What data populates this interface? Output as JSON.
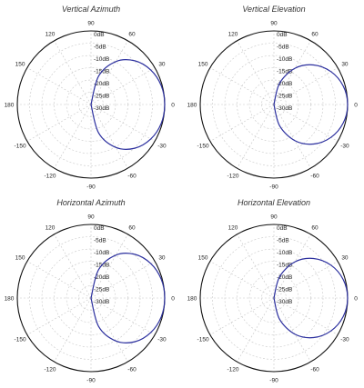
{
  "chart_data": [
    {
      "type": "polar",
      "title": "Vertical Azimuth",
      "radial_ticks": [
        "0dB",
        "-5dB",
        "-10dB",
        "-15dB",
        "-20dB",
        "-25dB",
        "-30dB"
      ],
      "radial_range": [
        -30,
        0
      ],
      "angle_ticks": [
        "90",
        "60",
        "30",
        "0",
        "-30",
        "-60",
        "-90",
        "-120",
        "-150",
        "180",
        "150",
        "120"
      ],
      "grid": true,
      "series": [
        {
          "color": "#2b2f9e",
          "angles": [
            -90,
            -75,
            -60,
            -45,
            -30,
            -15,
            0,
            15,
            30,
            45,
            60,
            75,
            90
          ],
          "values": [
            -30,
            -18,
            -9.8,
            -4.8,
            -1.9,
            -0.4,
            0,
            -0.4,
            -1.9,
            -4.8,
            -9.8,
            -18,
            -30
          ]
        }
      ]
    },
    {
      "type": "polar",
      "title": "Vertical Elevation",
      "radial_ticks": [
        "0dB",
        "-5dB",
        "-10dB",
        "-15dB",
        "-20dB",
        "-25dB",
        "-30dB"
      ],
      "radial_range": [
        -30,
        0
      ],
      "angle_ticks": [
        "90",
        "60",
        "30",
        "0",
        "-30",
        "-60",
        "-90",
        "-120",
        "-150",
        "180",
        "150",
        "120"
      ],
      "grid": true,
      "series": [
        {
          "color": "#2b2f9e",
          "angles": [
            -90,
            -75,
            -60,
            -45,
            -30,
            -15,
            0,
            15,
            30,
            45,
            60,
            75,
            90
          ],
          "values": [
            -30,
            -21,
            -13,
            -7.2,
            -3.2,
            -0.8,
            0,
            -0.8,
            -3.2,
            -7.2,
            -13,
            -21,
            -30
          ]
        }
      ]
    },
    {
      "type": "polar",
      "title": "Horizontal Azimuth",
      "radial_ticks": [
        "0dB",
        "-5dB",
        "-10dB",
        "-15dB",
        "-20dB",
        "-25dB",
        "-30dB"
      ],
      "radial_range": [
        -30,
        0
      ],
      "angle_ticks": [
        "90",
        "60",
        "30",
        "0",
        "-30",
        "-60",
        "-90",
        "-120",
        "-150",
        "180",
        "150",
        "120"
      ],
      "grid": true,
      "series": [
        {
          "color": "#2b2f9e",
          "angles": [
            -90,
            -75,
            -60,
            -45,
            -30,
            -15,
            0,
            15,
            30,
            45,
            60,
            75,
            90
          ],
          "values": [
            -30,
            -18,
            -9.8,
            -4.8,
            -1.9,
            -0.4,
            0,
            -0.4,
            -1.9,
            -4.8,
            -9.8,
            -18,
            -30
          ]
        }
      ]
    },
    {
      "type": "polar",
      "title": "Horizontal Elevation",
      "radial_ticks": [
        "0dB",
        "-5dB",
        "-10dB",
        "-15dB",
        "-20dB",
        "-25dB",
        "-30dB"
      ],
      "radial_range": [
        -30,
        0
      ],
      "angle_ticks": [
        "90",
        "60",
        "30",
        "0",
        "-30",
        "-60",
        "-90",
        "-120",
        "-150",
        "180",
        "150",
        "120"
      ],
      "grid": true,
      "series": [
        {
          "color": "#2b2f9e",
          "angles": [
            -90,
            -75,
            -60,
            -45,
            -30,
            -15,
            0,
            15,
            30,
            45,
            60,
            75,
            90
          ],
          "values": [
            -30,
            -21,
            -13,
            -7.2,
            -3.2,
            -0.8,
            0,
            -0.8,
            -3.2,
            -7.2,
            -13,
            -21,
            -30
          ]
        }
      ]
    }
  ]
}
